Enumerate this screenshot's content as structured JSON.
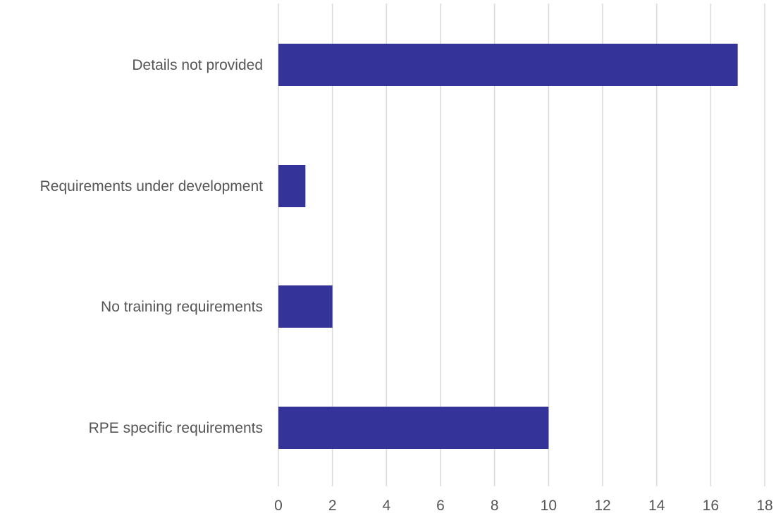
{
  "chart_data": {
    "type": "bar",
    "orientation": "horizontal",
    "categories": [
      "Details not provided",
      "Requirements under development",
      "No training requirements",
      "RPE specific requirements"
    ],
    "values": [
      17,
      1,
      2,
      10
    ],
    "title": "",
    "xlabel": "",
    "ylabel": "",
    "xlim": [
      0,
      18
    ],
    "xticks": [
      "0",
      "2",
      "4",
      "6",
      "8",
      "10",
      "12",
      "14",
      "16",
      "18"
    ],
    "grid": "vertical",
    "legend": "none",
    "bar_color": "#343399",
    "gridline_color": "#d9d9d9",
    "label_color": "#555555"
  }
}
